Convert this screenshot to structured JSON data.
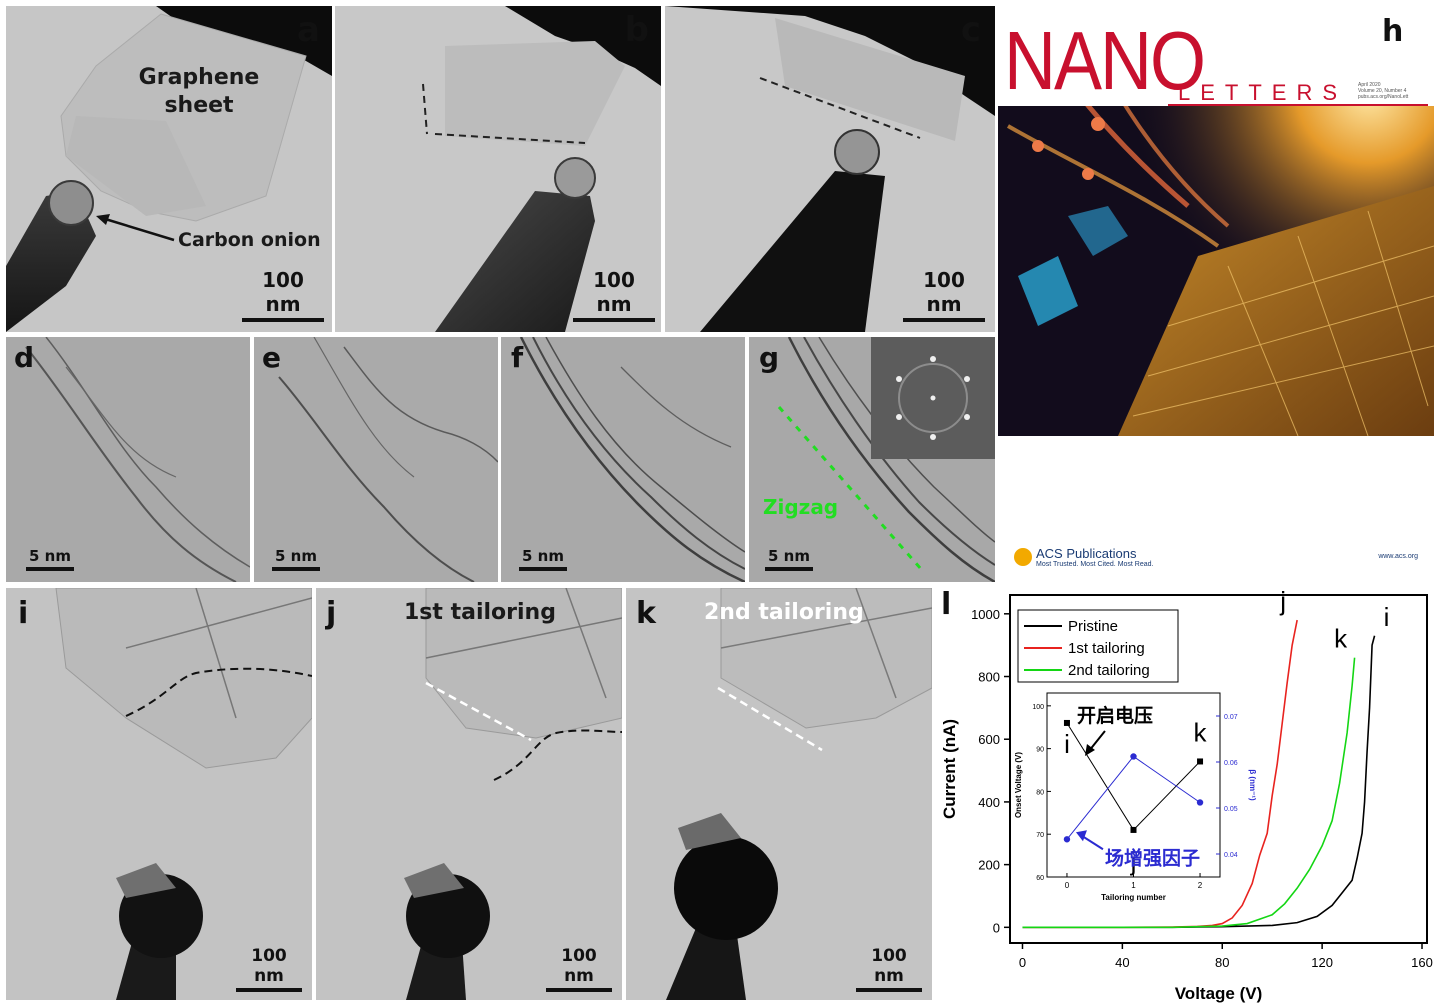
{
  "panels": {
    "a": {
      "label": "a",
      "annotation": "Graphene\nsheet",
      "arrow_text": "Carbon onion",
      "scale": "100 nm"
    },
    "b": {
      "label": "b",
      "scale": "100 nm"
    },
    "c": {
      "label": "c",
      "scale": "100 nm"
    },
    "d": {
      "label": "d",
      "scale": "5 nm"
    },
    "e": {
      "label": "e",
      "scale": "5 nm"
    },
    "f": {
      "label": "f",
      "scale": "5 nm"
    },
    "g": {
      "label": "g",
      "annotation": "Zigzag",
      "scale": "5 nm"
    },
    "h": {
      "label": "h"
    },
    "i": {
      "label": "i",
      "scale": "100 nm"
    },
    "j": {
      "label": "j",
      "title": "1st tailoring",
      "scale": "100 nm"
    },
    "k": {
      "label": "k",
      "title": "2nd tailoring",
      "scale": "100 nm"
    },
    "l": {
      "label": "l"
    }
  },
  "cover": {
    "masthead_left": "NANO",
    "masthead_right": "LETTERS",
    "issue_lines": [
      "April 2020",
      "Volume 20, Number 4",
      "pubs.acs.org/NanoLett"
    ],
    "publisher": "ACS Publications",
    "tagline": "Most Trusted. Most Cited. Most Read.",
    "url": "www.acs.org"
  },
  "colors": {
    "pristine": "#000000",
    "first_tailoring": "#e8231f",
    "second_tailoring": "#14d614",
    "inset_beta": "#2b2bd1",
    "zigzag": "#22dd22",
    "masthead": "#c8102e"
  },
  "chart_data": [
    {
      "type": "line",
      "xlabel": "Voltage (V)",
      "ylabel": "Current (nA)",
      "xlim": [
        -5,
        162
      ],
      "ylim": [
        -50,
        1060
      ],
      "xticks": [
        0,
        40,
        80,
        120,
        160
      ],
      "yticks": [
        0,
        200,
        400,
        600,
        800,
        1000
      ],
      "legend_position": "top-left",
      "series": [
        {
          "name": "Pristine",
          "color_key": "pristine",
          "end_label": "i",
          "x": [
            0,
            20,
            40,
            60,
            80,
            100,
            110,
            118,
            124,
            128,
            132,
            134,
            136,
            137,
            138,
            139,
            140,
            141
          ],
          "y": [
            0,
            0,
            0,
            0,
            2,
            6,
            15,
            35,
            70,
            110,
            150,
            220,
            300,
            400,
            560,
            700,
            900,
            930
          ]
        },
        {
          "name": "1st tailoring",
          "color_key": "first_tailoring",
          "end_label": "j",
          "x": [
            0,
            20,
            40,
            60,
            70,
            76,
            80,
            84,
            88,
            92,
            95,
            98,
            100,
            102,
            104,
            106,
            108,
            110
          ],
          "y": [
            0,
            0,
            0,
            1,
            3,
            6,
            12,
            30,
            70,
            140,
            230,
            300,
            420,
            520,
            650,
            780,
            900,
            980
          ]
        },
        {
          "name": "2nd tailoring",
          "color_key": "second_tailoring",
          "end_label": "k",
          "x": [
            0,
            20,
            40,
            60,
            80,
            90,
            100,
            105,
            110,
            115,
            120,
            124,
            127,
            130,
            132,
            133
          ],
          "y": [
            0,
            0,
            0,
            0,
            4,
            12,
            40,
            75,
            125,
            185,
            260,
            340,
            460,
            620,
            770,
            860
          ]
        }
      ]
    },
    {
      "type": "line",
      "xlabel": "Tailoring number",
      "ylabel": "Onset Voltage (V)",
      "y2label": "β (nm⁻¹)",
      "xlim": [
        -0.3,
        2.3
      ],
      "ylim": [
        60,
        103
      ],
      "y2lim": [
        0.035,
        0.075
      ],
      "xticks": [
        0,
        1,
        2
      ],
      "yticks": [
        60,
        70,
        80,
        90,
        100
      ],
      "y2ticks": [
        0.04,
        0.05,
        0.06,
        0.07
      ],
      "series": [
        {
          "name": "Onset Voltage",
          "axis": "left",
          "color_key": "pristine",
          "x": [
            0,
            1,
            2
          ],
          "y": [
            96,
            71,
            87
          ]
        },
        {
          "name": "β",
          "axis": "right",
          "color_key": "inset_beta",
          "x": [
            0,
            1,
            2
          ],
          "y": [
            0.0432,
            0.0612,
            0.0512
          ]
        }
      ],
      "point_labels": [
        "i",
        "j",
        "k"
      ],
      "annotations": [
        {
          "text": "开启电压",
          "color_key": "pristine"
        },
        {
          "text": "场增强因子",
          "color_key": "inset_beta"
        }
      ]
    }
  ]
}
